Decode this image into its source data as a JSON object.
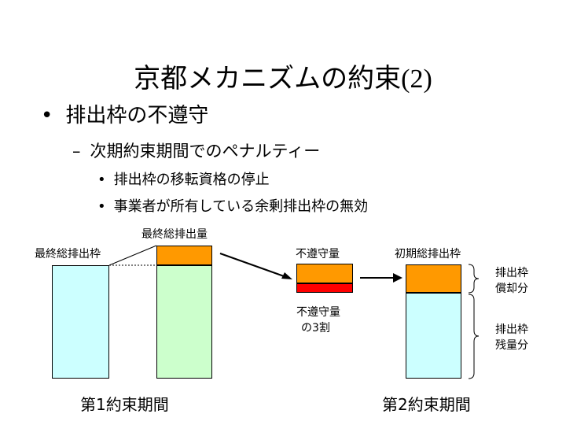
{
  "slide": {
    "title_main": "京都メカニズムの約束",
    "title_paren": "(2)",
    "bullet_l1": "排出枠の不遵守",
    "bullet_l2": "次期約束期間でのペナルティー",
    "bullet_l3a": "排出枠の移転資格の停止",
    "bullet_l3b": "事業者が所有している余剰排出枠の無効"
  },
  "diagram": {
    "label_total_quota": "最終総排出枠",
    "label_total_emissions": "最終総排出量",
    "label_noncompliance": "不遵守量",
    "label_initial_quota": "初期総排出枠",
    "label_penalty_line1": "不遵守量",
    "label_penalty_line2": "の3割",
    "label_repay_line1": "排出枠",
    "label_repay_line2": "償却分",
    "label_remain_line1": "排出枠",
    "label_remain_line2": "残量分",
    "label_period1": "第1約束期間",
    "label_period2": "第2約束期間",
    "colors": {
      "quota": "#ccffff",
      "emissions": "#ccffcc",
      "excess": "#ff9900",
      "penalty": "#ff0000"
    }
  }
}
